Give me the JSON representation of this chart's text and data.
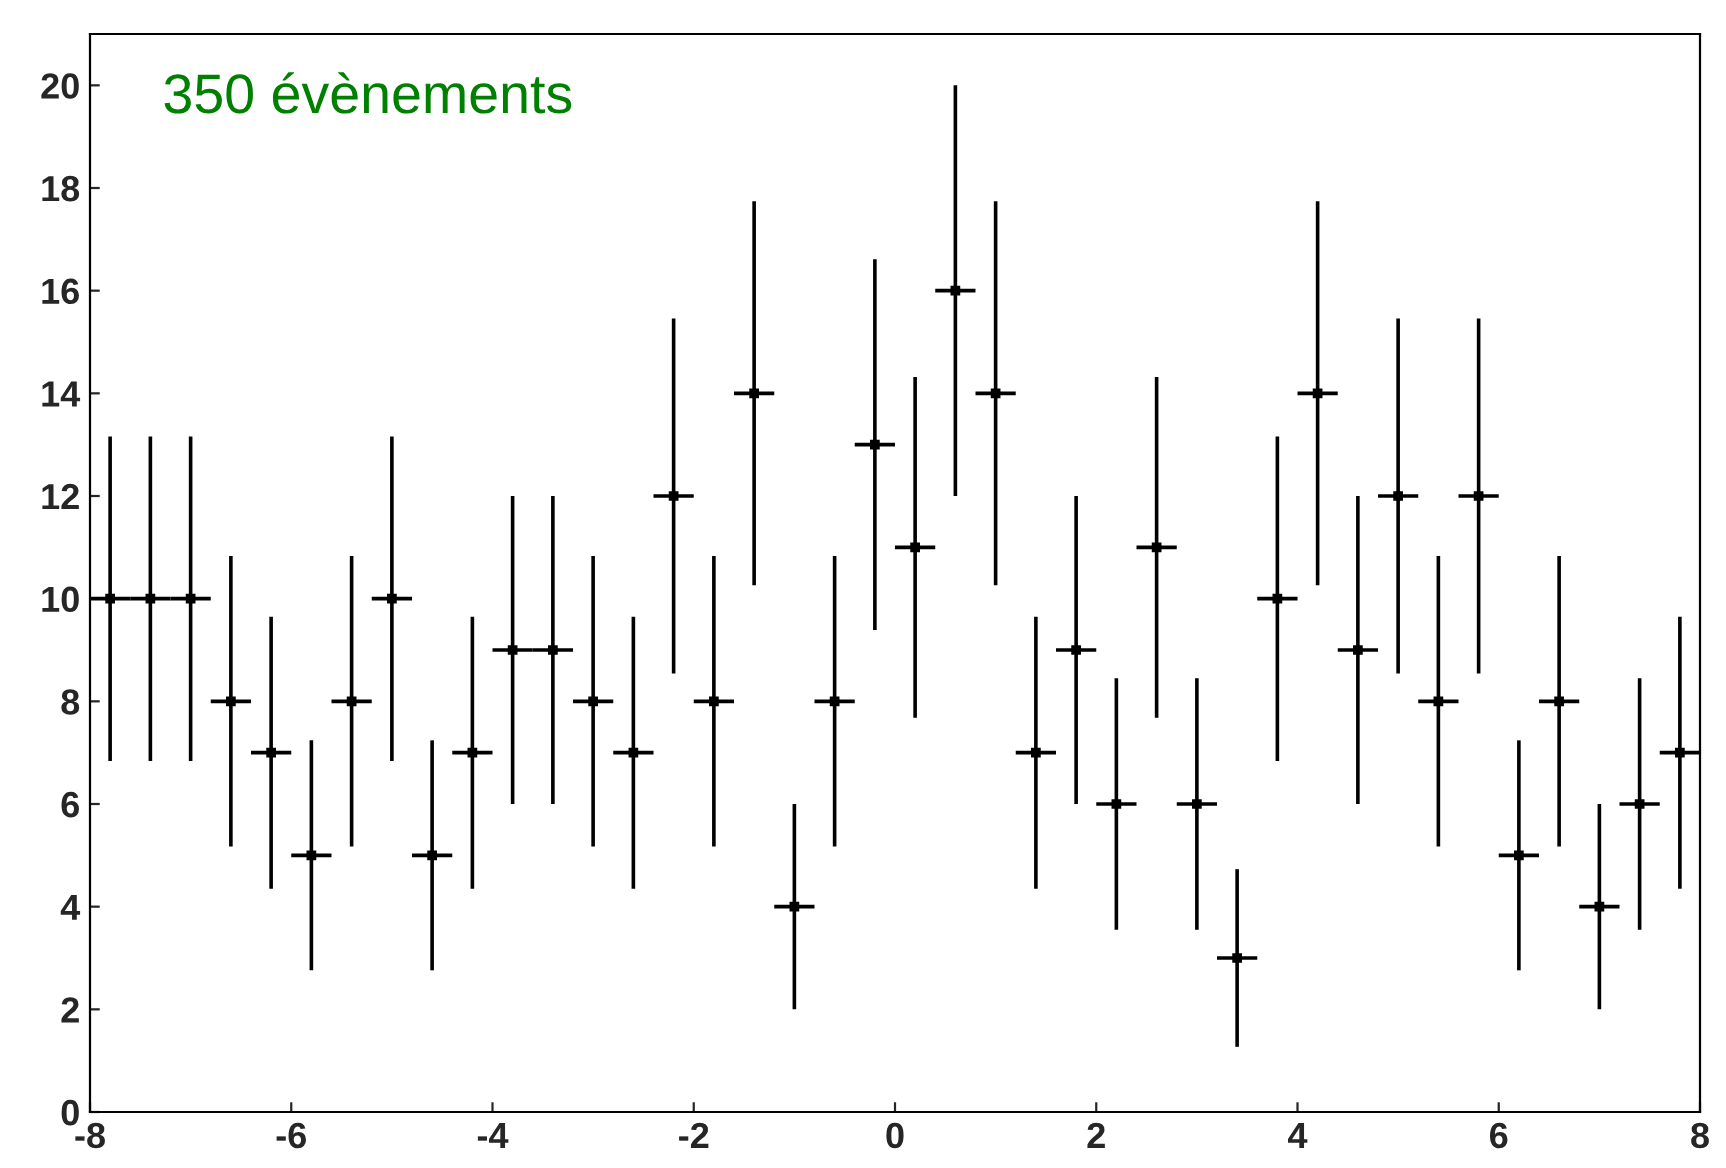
{
  "chart_data": {
    "type": "scatter",
    "marker": "square",
    "x": [
      -7.8,
      -7.4,
      -7,
      -6.6,
      -6.2,
      -5.8,
      -5.4,
      -5,
      -4.6,
      -4.2,
      -3.8,
      -3.4,
      -3,
      -2.6,
      -2.2,
      -1.8,
      -1.4,
      -1,
      -0.6,
      -0.2,
      0.2,
      0.6,
      1,
      1.4,
      1.8,
      2.2,
      2.6,
      3,
      3.4,
      3.8,
      4.2,
      4.6,
      5,
      5.4,
      5.8,
      6.2,
      6.6,
      7,
      7.4,
      7.8
    ],
    "values": [
      10,
      10,
      10,
      8,
      7,
      5,
      8,
      10,
      5,
      7,
      9,
      9,
      8,
      7,
      12,
      8,
      14,
      4,
      8,
      13,
      11,
      16,
      14,
      7,
      9,
      6,
      11,
      6,
      3,
      10,
      14,
      9,
      12,
      8,
      12,
      5,
      8,
      4,
      6,
      7
    ],
    "errors": [
      3.16,
      3.16,
      3.16,
      2.83,
      2.65,
      2.24,
      2.83,
      3.16,
      2.24,
      2.65,
      3,
      3,
      2.83,
      2.65,
      3.46,
      2.83,
      3.74,
      2,
      2.83,
      3.61,
      3.32,
      4,
      3.74,
      2.65,
      3,
      2.45,
      3.32,
      2.45,
      1.73,
      3.16,
      3.74,
      3,
      3.46,
      2.83,
      3.46,
      2.24,
      2.83,
      2,
      2.45,
      2.65
    ],
    "xerrors": [
      0.2,
      0.2,
      0.2,
      0.2,
      0.2,
      0.2,
      0.2,
      0.2,
      0.2,
      0.2,
      0.2,
      0.2,
      0.2,
      0.2,
      0.2,
      0.2,
      0.2,
      0.2,
      0.2,
      0.2,
      0.2,
      0.2,
      0.2,
      0.2,
      0.2,
      0.2,
      0.2,
      0.2,
      0.2,
      0.2,
      0.2,
      0.2,
      0.2,
      0.2,
      0.2,
      0.2,
      0.2,
      0.2,
      0.2,
      0.2
    ],
    "color": "#000000",
    "xlim": [
      -8,
      8
    ],
    "xticks": [
      -8,
      -6,
      -4,
      -2,
      0,
      2,
      4,
      6,
      8
    ],
    "ylim": [
      0,
      21
    ],
    "yticks": [
      0,
      2,
      4,
      6,
      8,
      10,
      12,
      14,
      16,
      18,
      20
    ],
    "annotations": [
      "350 évènements"
    ],
    "grid": false
  }
}
